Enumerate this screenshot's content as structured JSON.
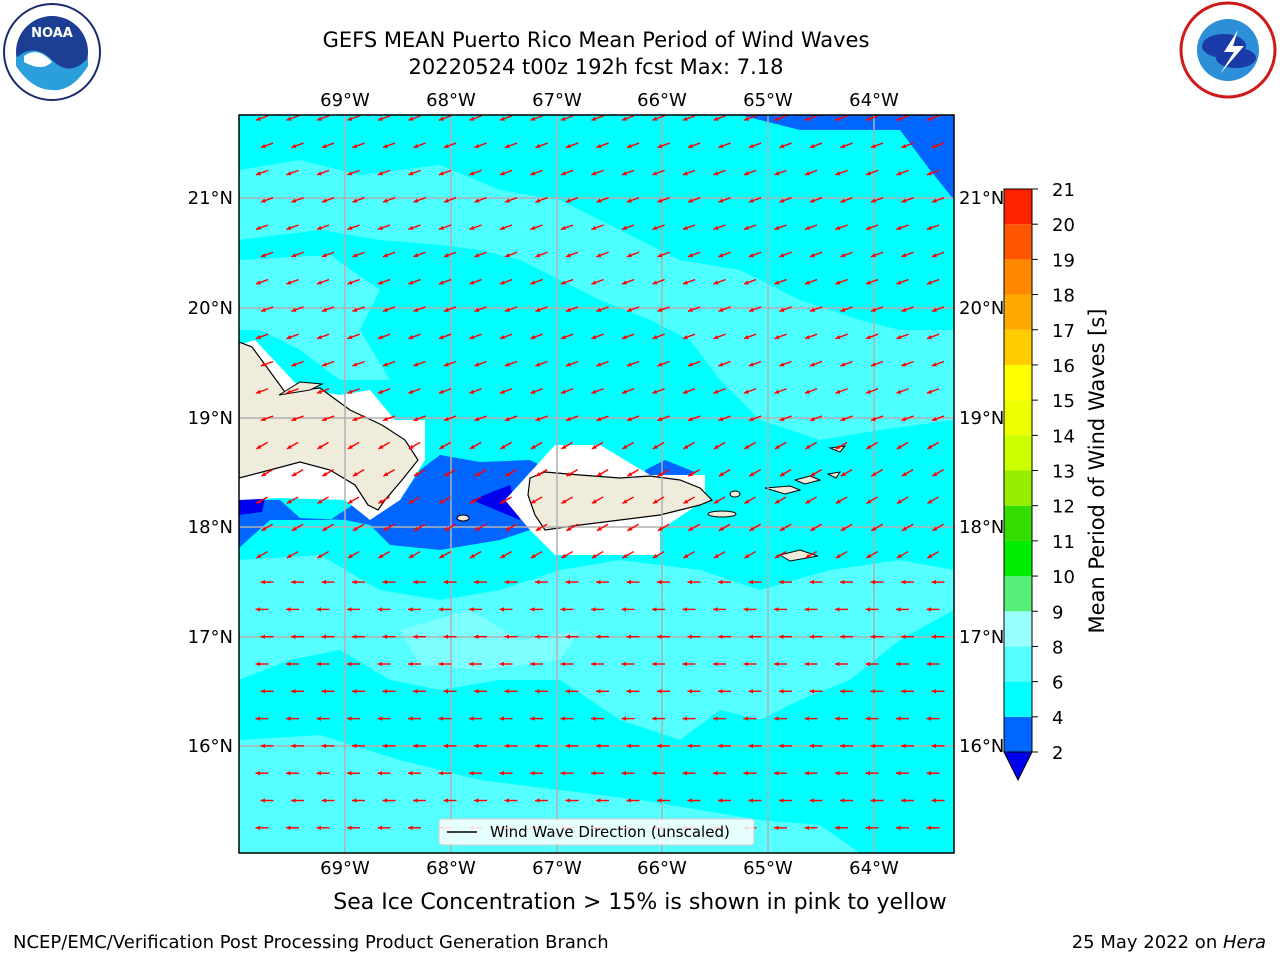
{
  "title": {
    "line1": "GEFS MEAN Puerto Rico Mean Period of Wind Waves",
    "line2": "20220524 t00z 192h fcst   Max: 7.18"
  },
  "logos": {
    "left": "noaa-logo",
    "right": "nws-logo"
  },
  "map": {
    "lon_labels": [
      "69°W",
      "68°W",
      "67°W",
      "66°W",
      "65°W",
      "64°W"
    ],
    "lat_labels": [
      "21°N",
      "20°N",
      "19°N",
      "18°N",
      "17°N",
      "16°N"
    ],
    "legend_label": "Wind Wave Direction (unscaled)",
    "arrow_color": "#ff0000",
    "ocean_color": "#00ffff",
    "land_color": "#efecdc"
  },
  "colorbar": {
    "label": "Mean Period of Wind Waves [s]",
    "ticks": [
      "2",
      "4",
      "6",
      "8",
      "9",
      "10",
      "11",
      "12",
      "13",
      "14",
      "15",
      "16",
      "17",
      "18",
      "19",
      "20",
      "21"
    ],
    "colors": [
      "#0066ff",
      "#00ffff",
      "#55ffff",
      "#99ffff",
      "#55ee77",
      "#00ee00",
      "#33dd00",
      "#99ee00",
      "#ccff00",
      "#eeff00",
      "#ffff00",
      "#ffcc00",
      "#ffaa00",
      "#ff8800",
      "#ff5500",
      "#ff2200",
      "#ff0000"
    ],
    "under_color": "#0000ee"
  },
  "bottom_note": "Sea Ice Concentration > 15% is shown in pink to yellow",
  "footer": {
    "left": "NCEP/EMC/Verification Post Processing Product Generation Branch",
    "right_date": "25 May 2022 on ",
    "right_host": "Hera"
  }
}
